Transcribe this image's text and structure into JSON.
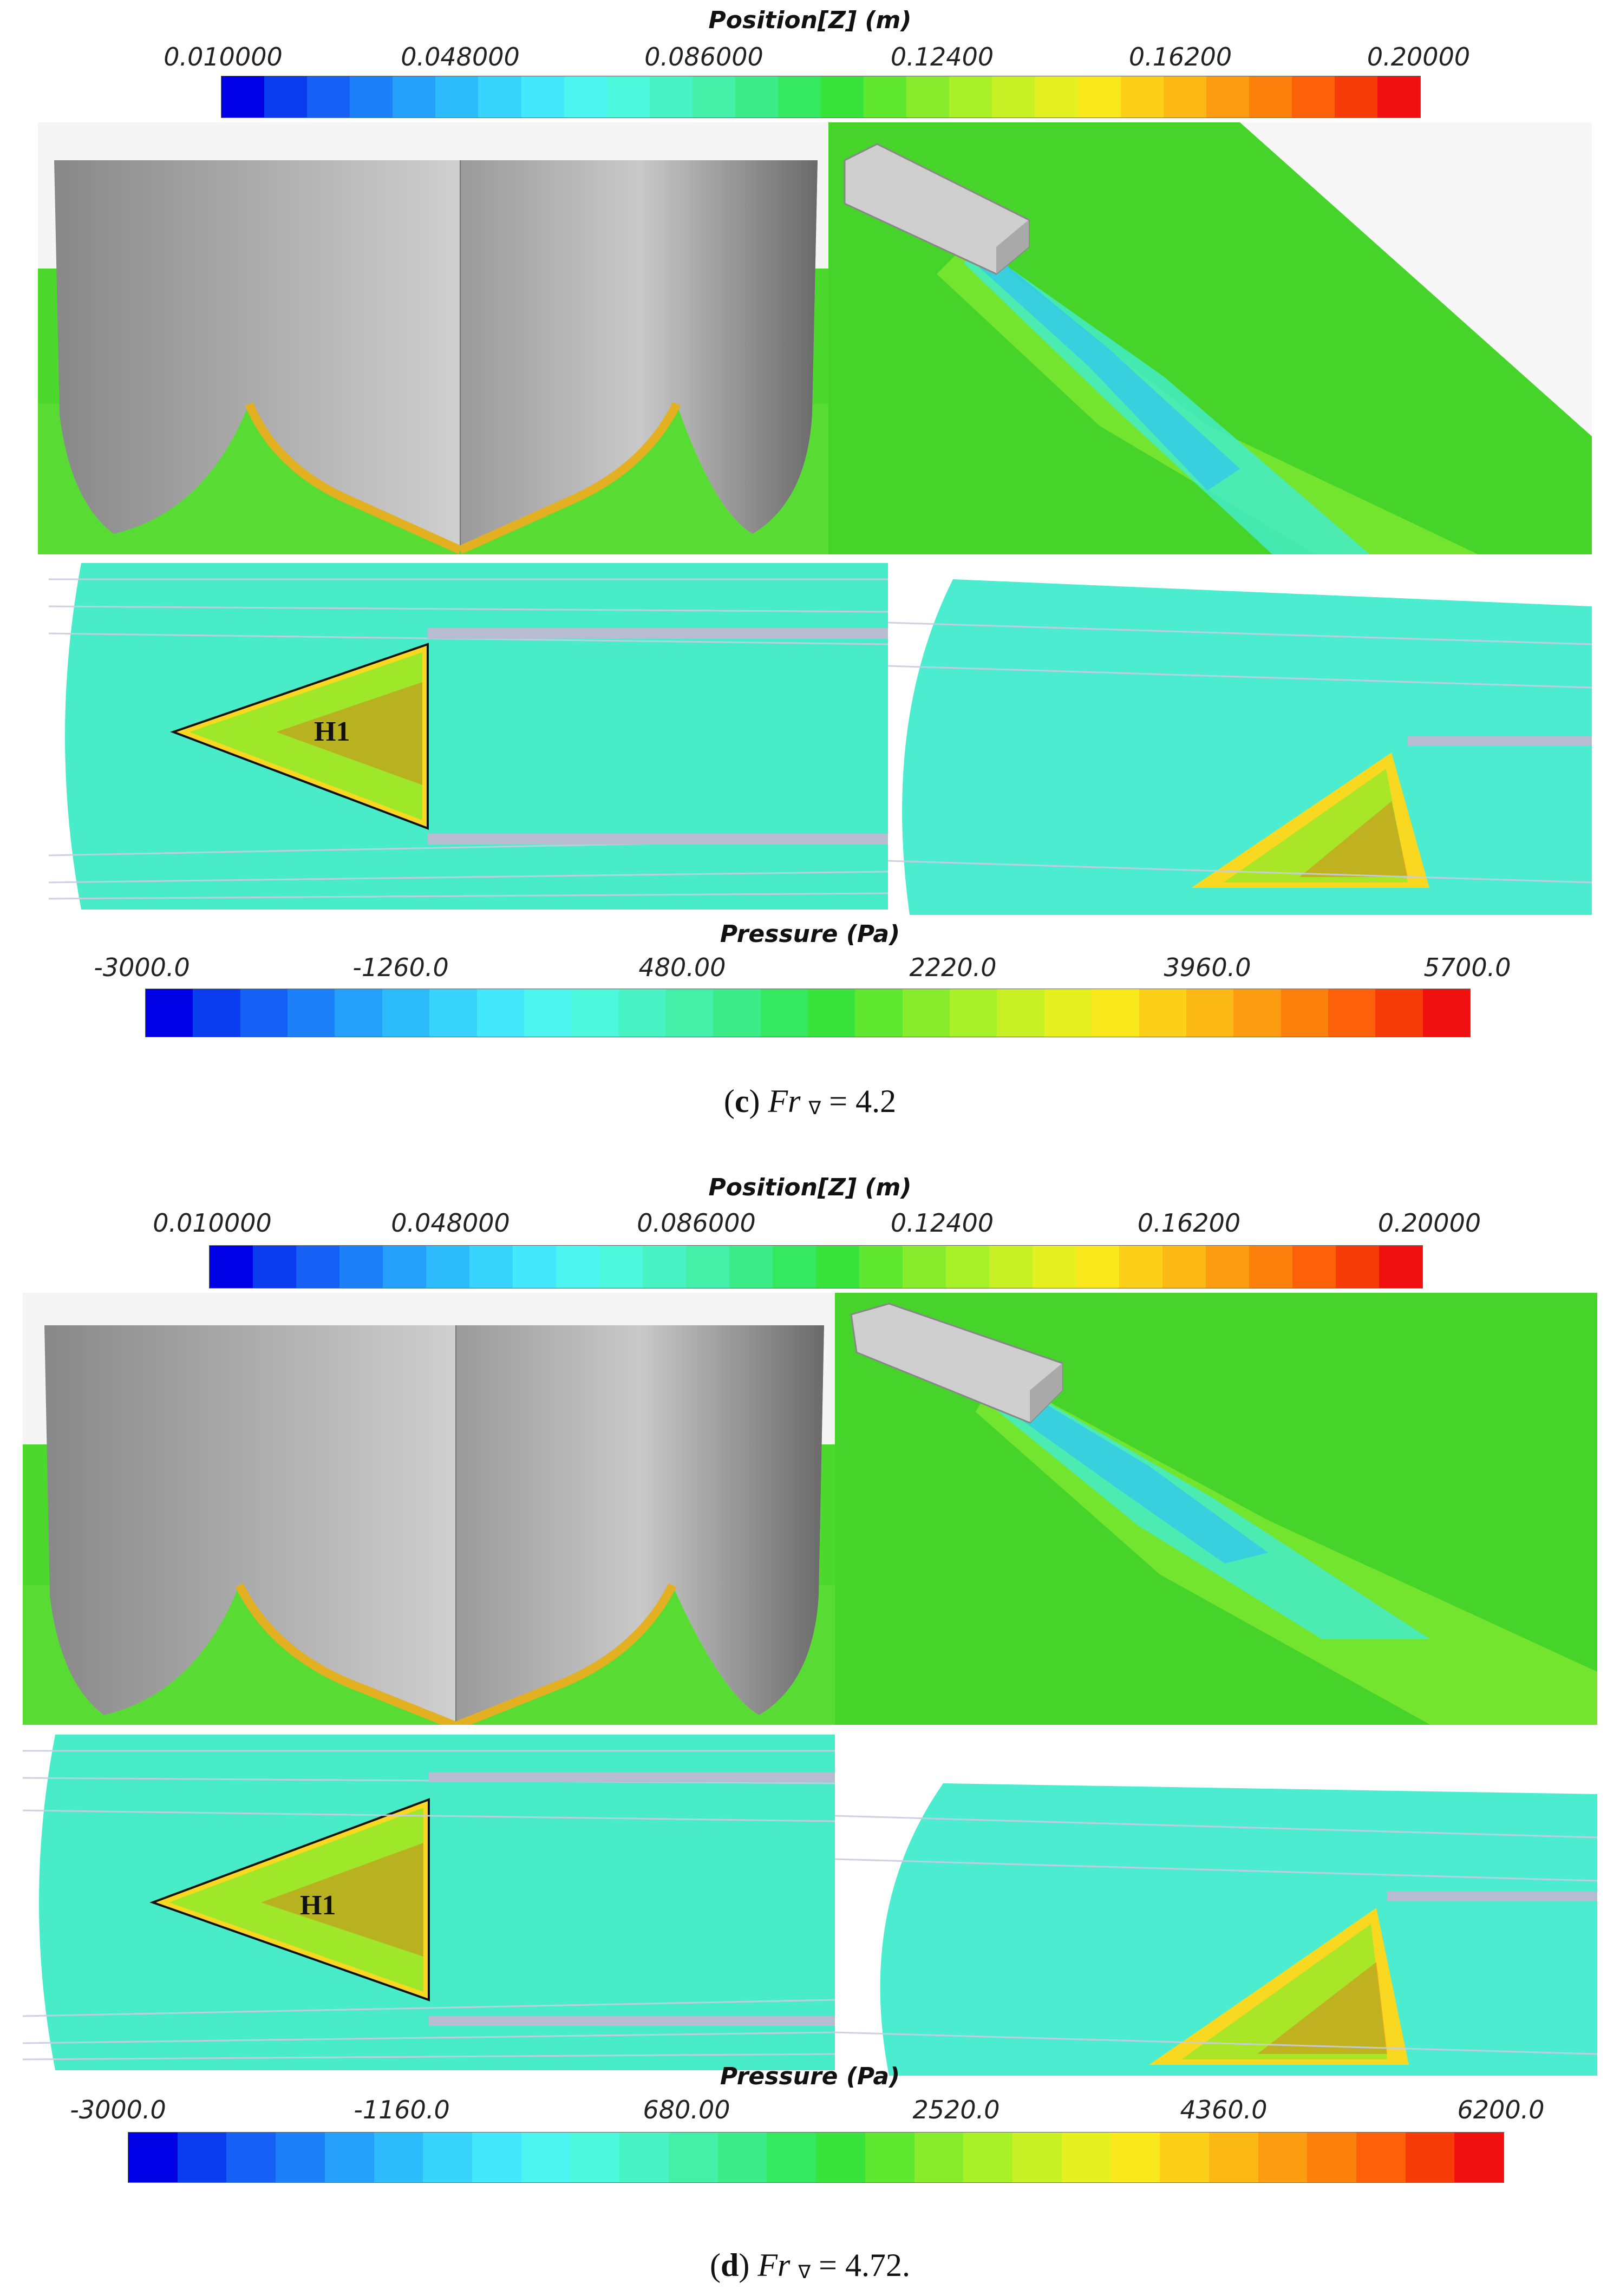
{
  "figure_c": {
    "position_colorbar": {
      "title": "Position[Z] (m)",
      "ticks": [
        "0.010000",
        "0.048000",
        "0.086000",
        "0.12400",
        "0.16200",
        "0.20000"
      ]
    },
    "pressure_colorbar": {
      "title": "Pressure (Pa)",
      "ticks": [
        "-3000.0",
        "-1260.0",
        "480.00",
        "2220.0",
        "3960.0",
        "5700.0"
      ]
    },
    "region_label": "H1",
    "caption": {
      "letter": "c",
      "text_prefix": "Fr",
      "subscript": "∇",
      "text_value": "= 4.2"
    }
  },
  "figure_d": {
    "position_colorbar": {
      "title": "Position[Z] (m)",
      "ticks": [
        "0.010000",
        "0.048000",
        "0.086000",
        "0.12400",
        "0.16200",
        "0.20000"
      ]
    },
    "pressure_colorbar": {
      "title": "Pressure (Pa)",
      "ticks": [
        "-3000.0",
        "-1160.0",
        "680.00",
        "2520.0",
        "4360.0",
        "6200.0"
      ]
    },
    "region_label": "H1",
    "caption": {
      "letter": "d",
      "text_prefix": "Fr",
      "subscript": "∇",
      "text_value": "= 4.72."
    }
  },
  "colormap": [
    "#0000e6",
    "#0a3cf0",
    "#1560f5",
    "#1c80f8",
    "#24a0fa",
    "#2cbcfb",
    "#38d4fc",
    "#44e8fc",
    "#4cf4f0",
    "#4cf8dc",
    "#48f4c4",
    "#44f0a8",
    "#3cec88",
    "#34e860",
    "#38e43c",
    "#60e830",
    "#88ec2c",
    "#a8f028",
    "#c8f024",
    "#e4f020",
    "#f8e81c",
    "#fcd018",
    "#fcb814",
    "#fc9c10",
    "#fc800c",
    "#fc6008",
    "#f83c08",
    "#f01010"
  ]
}
